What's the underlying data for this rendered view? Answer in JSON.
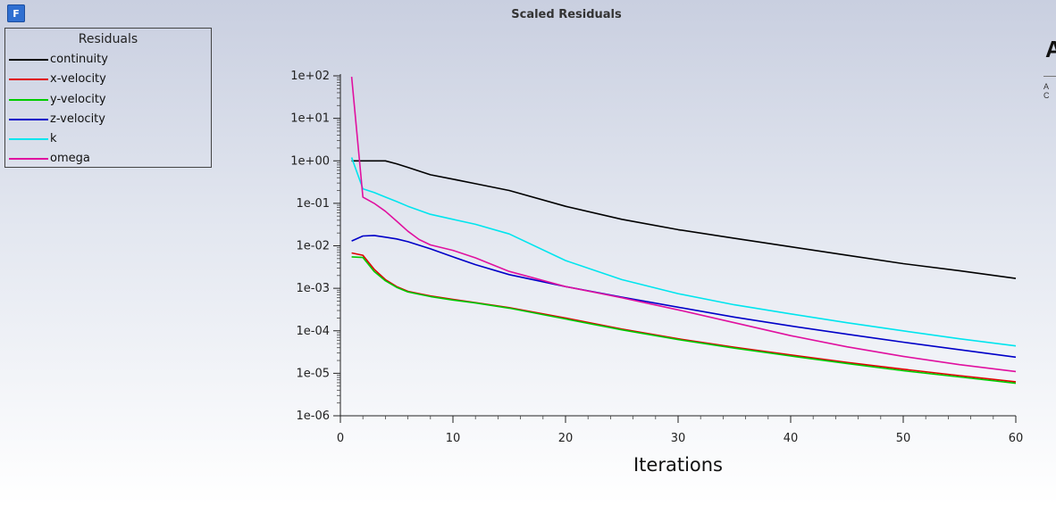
{
  "app": {
    "logo_letter": "F"
  },
  "chart_data": {
    "type": "line",
    "title": "Scaled Residuals",
    "xlabel": "Iterations",
    "ylabel": "",
    "y_scale": "log",
    "xlim": [
      0,
      60
    ],
    "ylim": [
      1e-06,
      100
    ],
    "x_ticks": [
      "0",
      "10",
      "20",
      "30",
      "40",
      "50",
      "60"
    ],
    "y_ticks": [
      "1e+02",
      "1e+01",
      "1e+00",
      "1e-01",
      "1e-02",
      "1e-03",
      "1e-04",
      "1e-05",
      "1e-06"
    ],
    "legend_title": "Residuals",
    "legend_position": "top-left",
    "grid": false,
    "series": [
      {
        "name": "continuity",
        "color": "#000000",
        "x": [
          1,
          2,
          3,
          4,
          5,
          6,
          8,
          10,
          12,
          15,
          20,
          25,
          30,
          35,
          40,
          45,
          50,
          55,
          60
        ],
        "y": [
          1.0,
          1.0,
          1.0,
          1.0,
          0.85,
          0.7,
          0.47,
          0.37,
          0.29,
          0.2,
          0.085,
          0.042,
          0.024,
          0.015,
          0.0095,
          0.006,
          0.0038,
          0.0026,
          0.0017
        ]
      },
      {
        "name": "x-velocity",
        "color": "#e00000",
        "x": [
          1,
          2,
          3,
          4,
          5,
          6,
          7,
          8,
          10,
          12,
          15,
          20,
          25,
          30,
          35,
          40,
          45,
          50,
          55,
          60
        ],
        "y": [
          0.0068,
          0.006,
          0.0028,
          0.0016,
          0.0011,
          0.00085,
          0.00075,
          0.00066,
          0.00055,
          0.00046,
          0.00035,
          0.0002,
          0.00011,
          6.5e-05,
          4.1e-05,
          2.7e-05,
          1.8e-05,
          1.25e-05,
          8.8e-06,
          6.3e-06
        ]
      },
      {
        "name": "y-velocity",
        "color": "#00cc00",
        "x": [
          1,
          2,
          3,
          4,
          5,
          6,
          7,
          8,
          10,
          12,
          15,
          20,
          25,
          30,
          35,
          40,
          45,
          50,
          55,
          60
        ],
        "y": [
          0.0055,
          0.0053,
          0.0025,
          0.0015,
          0.00105,
          0.00082,
          0.00072,
          0.00064,
          0.00053,
          0.00045,
          0.00034,
          0.00019,
          0.000105,
          6.2e-05,
          3.9e-05,
          2.55e-05,
          1.7e-05,
          1.15e-05,
          8.2e-06,
          5.8e-06
        ]
      },
      {
        "name": "z-velocity",
        "color": "#0000c8",
        "x": [
          1,
          2,
          3,
          4,
          5,
          6,
          8,
          10,
          12,
          15,
          20,
          25,
          30,
          35,
          40,
          45,
          50,
          55,
          60
        ],
        "y": [
          0.013,
          0.017,
          0.0175,
          0.016,
          0.0145,
          0.0125,
          0.0085,
          0.0055,
          0.0036,
          0.0021,
          0.0011,
          0.00062,
          0.00036,
          0.00021,
          0.00013,
          8.3e-05,
          5.4e-05,
          3.6e-05,
          2.4e-05
        ]
      },
      {
        "name": "k",
        "color": "#00e5ee",
        "x": [
          1,
          2,
          3,
          4,
          5,
          6,
          8,
          10,
          12,
          15,
          20,
          25,
          30,
          35,
          40,
          45,
          50,
          55,
          60
        ],
        "y": [
          1.2,
          0.22,
          0.18,
          0.14,
          0.11,
          0.085,
          0.055,
          0.042,
          0.032,
          0.019,
          0.0045,
          0.0016,
          0.00075,
          0.00041,
          0.00025,
          0.000155,
          0.0001,
          6.5e-05,
          4.4e-05
        ]
      },
      {
        "name": "omega",
        "color": "#e0109f",
        "x": [
          1,
          2,
          3,
          4,
          5,
          6,
          7,
          8,
          10,
          12,
          15,
          20,
          25,
          30,
          35,
          40,
          45,
          50,
          55,
          60
        ],
        "y": [
          95,
          0.14,
          0.1,
          0.065,
          0.038,
          0.022,
          0.014,
          0.0105,
          0.0078,
          0.0052,
          0.0025,
          0.0011,
          0.0006,
          0.00031,
          0.000155,
          7.7e-05,
          4.2e-05,
          2.5e-05,
          1.6e-05,
          1.1e-05
        ]
      }
    ]
  },
  "corner": {
    "letter": "A",
    "sub": "A C"
  }
}
